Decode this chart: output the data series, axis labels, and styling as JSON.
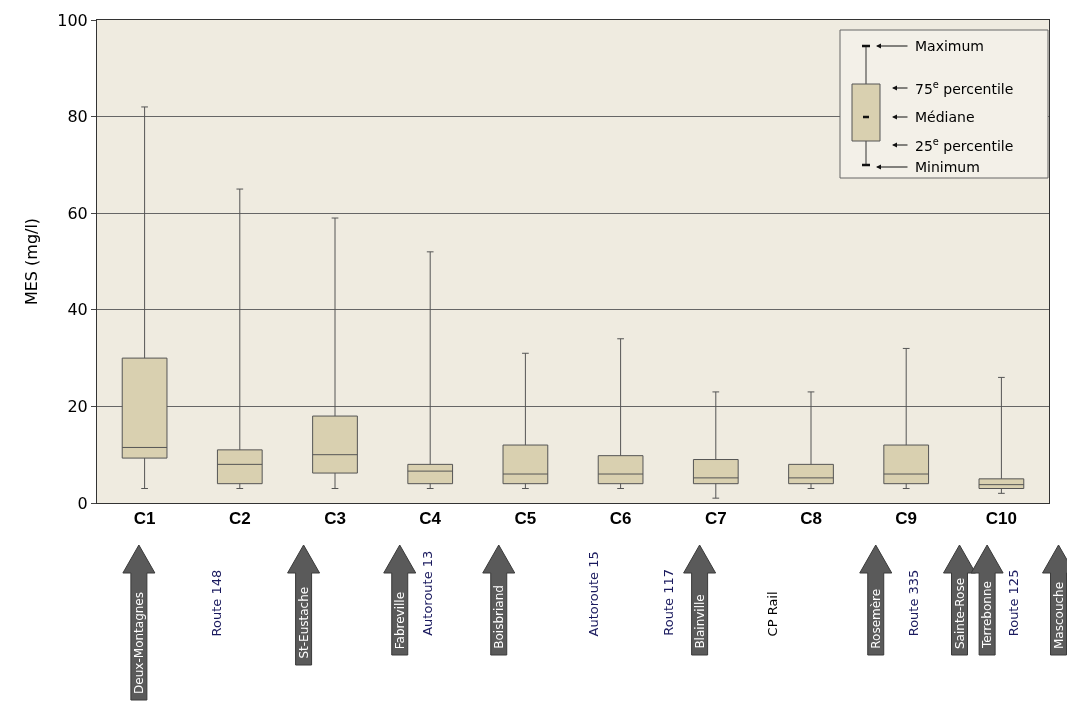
{
  "chart_data": {
    "type": "box",
    "ylabel": "MES (mg/l)",
    "categories": [
      "C1",
      "C2",
      "C3",
      "C4",
      "C5",
      "C6",
      "C7",
      "C8",
      "C9",
      "C10"
    ],
    "color": "#d9d0b0",
    "boxes": [
      {
        "low": 3,
        "q1": 9.3,
        "median": 11.5,
        "q3": 30,
        "high": 82
      },
      {
        "low": 3,
        "q1": 4,
        "median": 8,
        "q3": 11,
        "high": 65
      },
      {
        "low": 3,
        "q1": 6.2,
        "median": 10,
        "q3": 18,
        "high": 59
      },
      {
        "low": 3,
        "q1": 4,
        "median": 6.6,
        "q3": 8,
        "high": 52
      },
      {
        "low": 3,
        "q1": 4,
        "median": 6,
        "q3": 12,
        "high": 31
      },
      {
        "low": 3,
        "q1": 4,
        "median": 6,
        "q3": 9.8,
        "high": 34
      },
      {
        "low": 1,
        "q1": 4,
        "median": 5.2,
        "q3": 9,
        "high": 23
      },
      {
        "low": 3,
        "q1": 4,
        "median": 5.2,
        "q3": 8,
        "high": 23
      },
      {
        "low": 3,
        "q1": 4,
        "median": 6,
        "q3": 12,
        "high": 32
      },
      {
        "low": 2,
        "q1": 3,
        "median": 3.8,
        "q3": 5,
        "high": 26
      }
    ],
    "ylim": [
      0,
      100
    ],
    "yticks": [
      0,
      20,
      40,
      60,
      80,
      100
    ],
    "grid": "y",
    "annotations": [
      "Maximum",
      "75$^{e}$ percentile",
      "Médiane",
      "25$^{e}$ percentile",
      "Minimum",
      "Deux-Montagnes",
      "Route 148",
      "St-Eustache",
      "Fabreville",
      "Autoroute 13",
      "Boisbriand",
      "Autoroute 15",
      "Route 117",
      "Blainville",
      "CP Rail",
      "Rosemère",
      "Route 335",
      "Sainte-Rose",
      "Terrebonne",
      "Route 125",
      "Mascouche"
    ]
  }
}
